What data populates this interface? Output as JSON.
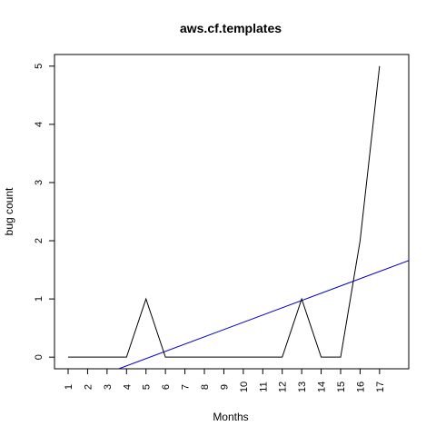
{
  "chart_data": {
    "type": "line",
    "title": "aws.cf.templates",
    "xlabel": "Months",
    "ylabel": "bug count",
    "x": [
      "1",
      "2",
      "3",
      "4",
      "5",
      "6",
      "7",
      "8",
      "9",
      "10",
      "11",
      "12",
      "13",
      "14",
      "15",
      "16",
      "17"
    ],
    "series": [
      {
        "values": [
          0,
          0,
          0,
          0,
          1,
          0,
          0,
          0,
          0,
          0,
          0,
          0,
          1,
          0,
          0,
          2,
          5
        ],
        "color": "#000000"
      }
    ],
    "trend_line": {
      "color": "#0000cc",
      "points": [
        [
          3.6,
          -0.2
        ],
        [
          18.5,
          1.66
        ]
      ]
    },
    "yticks": [
      "0",
      "1",
      "2",
      "3",
      "4",
      "5"
    ],
    "xlim": [
      0.3,
      18.5
    ],
    "ylim": [
      -0.2,
      5.2
    ],
    "grid": false,
    "legend": "none"
  }
}
